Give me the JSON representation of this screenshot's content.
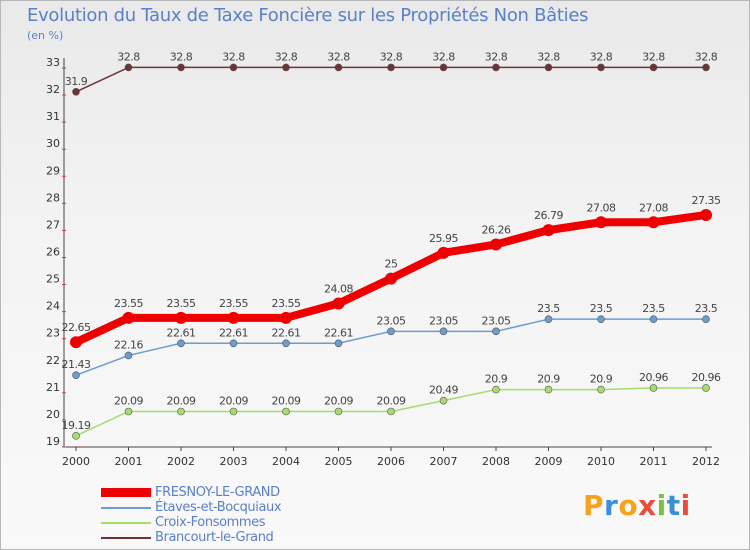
{
  "chart_data": {
    "type": "line",
    "title": "Evolution du Taux de Taxe Foncière sur les Propriétés Non Bâties",
    "unit_label": "(en %)",
    "x": [
      "2000",
      "2001",
      "2002",
      "2003",
      "2004",
      "2005",
      "2006",
      "2007",
      "2008",
      "2009",
      "2010",
      "2011",
      "2012"
    ],
    "ylim": [
      19,
      33
    ],
    "yticks": [
      "19",
      "20",
      "21",
      "22",
      "23",
      "24",
      "25",
      "26",
      "27",
      "28",
      "29",
      "30",
      "31",
      "32",
      "33"
    ],
    "grid": false,
    "legend_position": "bottom-left",
    "series": [
      {
        "name": "Brancourt-le-Grand",
        "color": "#6e3234",
        "values": [
          31.9,
          32.8,
          32.8,
          32.8,
          32.8,
          32.8,
          32.8,
          32.8,
          32.8,
          32.8,
          32.8,
          32.8,
          32.8
        ],
        "labels": [
          "31.9",
          "32.8",
          "32.8",
          "32.8",
          "32.8",
          "32.8",
          "32.8",
          "32.8",
          "32.8",
          "32.8",
          "32.8",
          "32.8",
          "32.8"
        ]
      },
      {
        "name": "Étaves-et-Bocquiaux",
        "color": "#6d9cce",
        "values": [
          21.43,
          22.16,
          22.61,
          22.61,
          22.61,
          22.61,
          23.05,
          23.05,
          23.05,
          23.5,
          23.5,
          23.5,
          23.5
        ],
        "labels": [
          "21.43",
          "22.16",
          "22.61",
          "22.61",
          "22.61",
          "22.61",
          "23.05",
          "23.05",
          "23.05",
          "23.5",
          "23.5",
          "23.5",
          "23.5"
        ]
      },
      {
        "name": "Croix-Fonsommes",
        "color": "#a6dc6a",
        "values": [
          19.19,
          20.09,
          20.09,
          20.09,
          20.09,
          20.09,
          20.09,
          20.49,
          20.9,
          20.9,
          20.9,
          20.96,
          20.96
        ],
        "labels": [
          "19.19",
          "20.09",
          "20.09",
          "20.09",
          "20.09",
          "20.09",
          "20.09",
          "20.49",
          "20.9",
          "20.9",
          "20.9",
          "20.96",
          "20.96"
        ]
      },
      {
        "name": "FRESNOY-LE-GRAND",
        "color": "#ee0000",
        "values": [
          22.65,
          23.55,
          23.55,
          23.55,
          23.55,
          24.08,
          25,
          25.95,
          26.26,
          26.79,
          27.08,
          27.08,
          27.35
        ],
        "labels": [
          "22.65",
          "23.55",
          "23.55",
          "23.55",
          "23.55",
          "24.08",
          "25",
          "25.95",
          "26.26",
          "26.79",
          "27.08",
          "27.08",
          "27.35"
        ]
      }
    ],
    "legend": [
      {
        "name": "FRESNOY-LE-GRAND",
        "color": "#ee0000",
        "thick": true
      },
      {
        "name": "Étaves-et-Bocquiaux",
        "color": "#6d9cce",
        "thick": false
      },
      {
        "name": "Croix-Fonsommes",
        "color": "#a6dc6a",
        "thick": false
      },
      {
        "name": "Brancourt-le-Grand",
        "color": "#6e3234",
        "thick": false
      }
    ]
  },
  "logo": {
    "text": "Proxiti"
  }
}
